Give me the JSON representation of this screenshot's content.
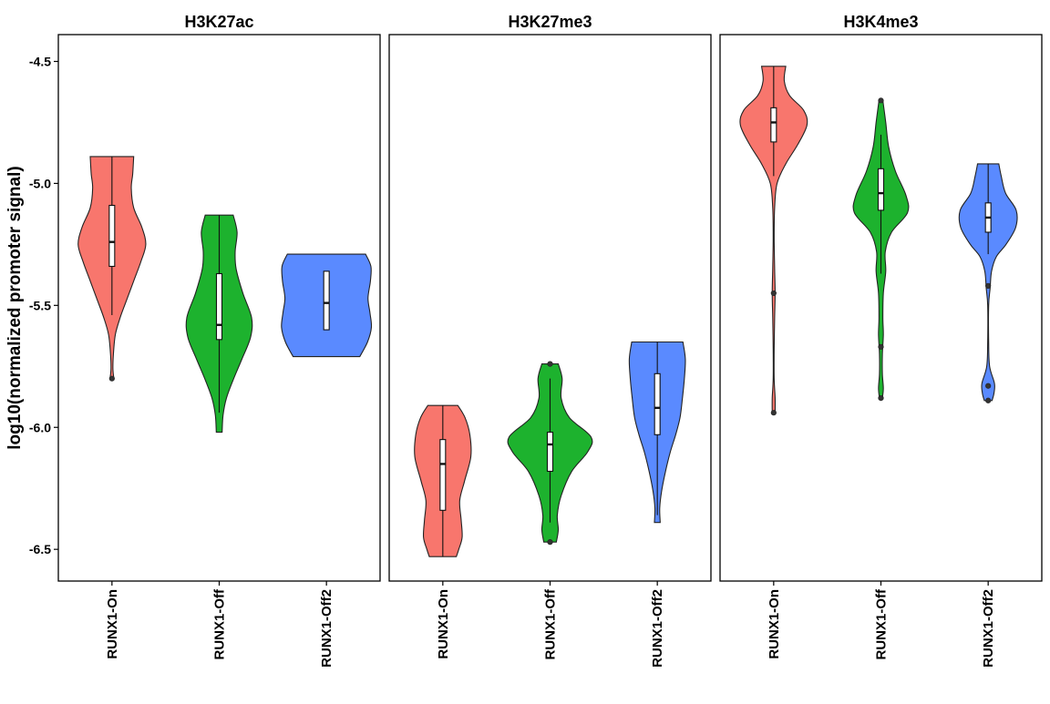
{
  "chart_data": {
    "type": "violin",
    "ylabel": "log10(normalized promoter signal)",
    "xlabel": "",
    "ylim": [
      -6.63,
      -4.39
    ],
    "y_ticks": [
      -4.5,
      -5.0,
      -5.5,
      -6.0,
      -6.5
    ],
    "y_tick_labels": [
      "-4.5",
      "-5.0",
      "-5.5",
      "-6.0",
      "-6.5"
    ],
    "categories": [
      "RUNX1-On",
      "RUNX1-Off",
      "RUNX1-Off2"
    ],
    "colors": {
      "RUNX1-On": "#F8766D",
      "RUNX1-Off": "#1DB22E",
      "RUNX1-Off2": "#5A8AFF"
    },
    "grid": false,
    "legend": "none",
    "panels": [
      {
        "title": "H3K27ac",
        "violins": [
          {
            "category": "RUNX1-On",
            "min": -5.8,
            "max": -4.89,
            "q1": -5.34,
            "median": -5.24,
            "q3": -5.09,
            "whisker_low": -5.54,
            "whisker_high": -4.89,
            "density": [
              [
                -4.89,
                0.45
              ],
              [
                -4.96,
                0.43
              ],
              [
                -5.02,
                0.4
              ],
              [
                -5.1,
                0.45
              ],
              [
                -5.18,
                0.62
              ],
              [
                -5.25,
                0.7
              ],
              [
                -5.32,
                0.6
              ],
              [
                -5.4,
                0.45
              ],
              [
                -5.48,
                0.3
              ],
              [
                -5.55,
                0.17
              ],
              [
                -5.62,
                0.07
              ],
              [
                -5.7,
                0.03
              ],
              [
                -5.76,
                0.02
              ],
              [
                -5.8,
                0.04
              ]
            ],
            "outliers": [
              -5.8
            ]
          },
          {
            "category": "RUNX1-Off",
            "min": -6.02,
            "max": -5.13,
            "q1": -5.64,
            "median": -5.58,
            "q3": -5.37,
            "whisker_low": -5.94,
            "whisker_high": -5.13,
            "density": [
              [
                -5.13,
                0.29
              ],
              [
                -5.2,
                0.37
              ],
              [
                -5.28,
                0.33
              ],
              [
                -5.35,
                0.35
              ],
              [
                -5.45,
                0.49
              ],
              [
                -5.55,
                0.67
              ],
              [
                -5.63,
                0.65
              ],
              [
                -5.72,
                0.47
              ],
              [
                -5.8,
                0.3
              ],
              [
                -5.88,
                0.15
              ],
              [
                -5.95,
                0.08
              ],
              [
                -6.02,
                0.06
              ]
            ],
            "outliers": []
          },
          {
            "category": "RUNX1-Off2",
            "min": -5.71,
            "max": -5.29,
            "q1": -5.6,
            "median": -5.49,
            "q3": -5.36,
            "whisker_low": -5.6,
            "whisker_high": -5.36,
            "density": [
              [
                -5.29,
                0.81
              ],
              [
                -5.34,
                0.92
              ],
              [
                -5.4,
                0.91
              ],
              [
                -5.47,
                0.86
              ],
              [
                -5.53,
                0.9
              ],
              [
                -5.59,
                0.93
              ],
              [
                -5.65,
                0.85
              ],
              [
                -5.71,
                0.69
              ]
            ],
            "outliers": []
          }
        ]
      },
      {
        "title": "H3K27me3",
        "violins": [
          {
            "category": "RUNX1-On",
            "min": -6.53,
            "max": -5.91,
            "q1": -6.34,
            "median": -6.15,
            "q3": -6.05,
            "whisker_low": -6.53,
            "whisker_high": -5.91,
            "density": [
              [
                -5.91,
                0.31
              ],
              [
                -5.96,
                0.46
              ],
              [
                -6.03,
                0.56
              ],
              [
                -6.12,
                0.58
              ],
              [
                -6.22,
                0.45
              ],
              [
                -6.3,
                0.35
              ],
              [
                -6.38,
                0.38
              ],
              [
                -6.45,
                0.4
              ],
              [
                -6.5,
                0.33
              ],
              [
                -6.53,
                0.28
              ]
            ],
            "outliers": []
          },
          {
            "category": "RUNX1-Off",
            "min": -6.47,
            "max": -5.74,
            "q1": -6.18,
            "median": -6.07,
            "q3": -6.02,
            "whisker_low": -6.39,
            "whisker_high": -5.8,
            "density": [
              [
                -5.74,
                0.17
              ],
              [
                -5.8,
                0.25
              ],
              [
                -5.88,
                0.23
              ],
              [
                -5.96,
                0.4
              ],
              [
                -6.04,
                0.85
              ],
              [
                -6.1,
                0.78
              ],
              [
                -6.18,
                0.45
              ],
              [
                -6.28,
                0.23
              ],
              [
                -6.36,
                0.15
              ],
              [
                -6.42,
                0.17
              ],
              [
                -6.47,
                0.13
              ]
            ],
            "outliers": [
              -5.74,
              -6.47
            ]
          },
          {
            "category": "RUNX1-Off2",
            "min": -6.39,
            "max": -5.65,
            "q1": -6.03,
            "median": -5.92,
            "q3": -5.78,
            "whisker_low": -6.36,
            "whisker_high": -5.65,
            "density": [
              [
                -5.65,
                0.53
              ],
              [
                -5.72,
                0.58
              ],
              [
                -5.8,
                0.56
              ],
              [
                -5.88,
                0.52
              ],
              [
                -5.96,
                0.47
              ],
              [
                -6.03,
                0.38
              ],
              [
                -6.1,
                0.27
              ],
              [
                -6.18,
                0.17
              ],
              [
                -6.26,
                0.09
              ],
              [
                -6.33,
                0.05
              ],
              [
                -6.39,
                0.06
              ]
            ],
            "outliers": []
          }
        ]
      },
      {
        "title": "H3K4me3",
        "violins": [
          {
            "category": "RUNX1-On",
            "min": -5.94,
            "max": -4.52,
            "q1": -4.83,
            "median": -4.75,
            "q3": -4.69,
            "whisker_low": -4.97,
            "whisker_high": -4.52,
            "density": [
              [
                -4.52,
                0.25
              ],
              [
                -4.58,
                0.22
              ],
              [
                -4.64,
                0.33
              ],
              [
                -4.7,
                0.62
              ],
              [
                -4.76,
                0.69
              ],
              [
                -4.84,
                0.5
              ],
              [
                -4.92,
                0.25
              ],
              [
                -5.0,
                0.07
              ],
              [
                -5.1,
                0.02
              ],
              [
                -5.22,
                0.01
              ],
              [
                -5.35,
                0.02
              ],
              [
                -5.45,
                0.03
              ],
              [
                -5.55,
                0.02
              ],
              [
                -5.68,
                0.01
              ],
              [
                -5.8,
                0.01
              ],
              [
                -5.88,
                0.03
              ],
              [
                -5.94,
                0.03
              ]
            ],
            "outliers": [
              -5.45,
              -5.94
            ]
          },
          {
            "category": "RUNX1-Off",
            "min": -5.88,
            "max": -4.66,
            "q1": -5.11,
            "median": -5.04,
            "q3": -4.94,
            "whisker_low": -5.37,
            "whisker_high": -4.8,
            "density": [
              [
                -4.66,
                0.04
              ],
              [
                -4.75,
                0.1
              ],
              [
                -4.85,
                0.16
              ],
              [
                -4.95,
                0.3
              ],
              [
                -5.05,
                0.52
              ],
              [
                -5.12,
                0.55
              ],
              [
                -5.2,
                0.22
              ],
              [
                -5.28,
                0.09
              ],
              [
                -5.36,
                0.1
              ],
              [
                -5.45,
                0.05
              ],
              [
                -5.55,
                0.04
              ],
              [
                -5.62,
                0.05
              ],
              [
                -5.7,
                0.03
              ],
              [
                -5.78,
                0.03
              ],
              [
                -5.84,
                0.05
              ],
              [
                -5.88,
                0.03
              ]
            ],
            "outliers": [
              -4.66,
              -5.67,
              -5.88
            ]
          },
          {
            "category": "RUNX1-Off2",
            "min": -5.89,
            "max": -4.92,
            "q1": -5.2,
            "median": -5.14,
            "q3": -5.08,
            "whisker_low": -5.29,
            "whisker_high": -4.92,
            "density": [
              [
                -4.92,
                0.22
              ],
              [
                -4.97,
                0.27
              ],
              [
                -5.04,
                0.36
              ],
              [
                -5.11,
                0.58
              ],
              [
                -5.18,
                0.57
              ],
              [
                -5.25,
                0.37
              ],
              [
                -5.3,
                0.17
              ],
              [
                -5.36,
                0.07
              ],
              [
                -5.43,
                0.04
              ],
              [
                -5.5,
                0.01
              ],
              [
                -5.65,
                0.01
              ],
              [
                -5.75,
                0.03
              ],
              [
                -5.82,
                0.13
              ],
              [
                -5.86,
                0.12
              ],
              [
                -5.89,
                0.08
              ]
            ],
            "outliers": [
              -5.42,
              -5.83,
              -5.89
            ]
          }
        ]
      }
    ]
  }
}
